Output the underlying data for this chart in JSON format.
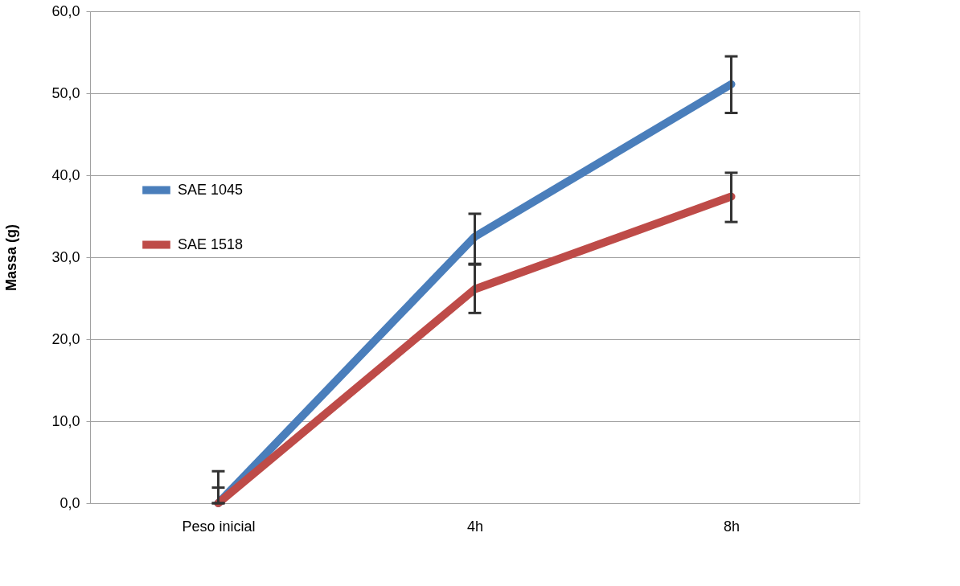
{
  "chart_data": {
    "type": "line",
    "ylabel": "Massa (g)",
    "categories": [
      "Peso inicial",
      "4h",
      "8h"
    ],
    "series": [
      {
        "name": "SAE 1045",
        "color": "#4a7ebb",
        "values": [
          0,
          32.5,
          51.1
        ],
        "errors": [
          [
            0,
            3.9
          ],
          [
            29.2,
            35.3
          ],
          [
            47.6,
            54.5
          ]
        ]
      },
      {
        "name": "SAE 1518",
        "color": "#be4b48",
        "values": [
          0,
          26.1,
          37.4
        ],
        "errors": [
          [
            0,
            1.9
          ],
          [
            23.2,
            29.1
          ],
          [
            34.3,
            40.3
          ]
        ]
      }
    ],
    "ylim": [
      0,
      60
    ],
    "yticks": [
      {
        "value": 0,
        "label": "0,0"
      },
      {
        "value": 10,
        "label": "10,0"
      },
      {
        "value": 20,
        "label": "20,0"
      },
      {
        "value": 30,
        "label": "30,0"
      },
      {
        "value": 40,
        "label": "40,0"
      },
      {
        "value": 50,
        "label": "50,0"
      },
      {
        "value": 60,
        "label": "60,0"
      }
    ],
    "grid": "y",
    "legend": "left",
    "marker": "none",
    "line_style": "solid"
  }
}
